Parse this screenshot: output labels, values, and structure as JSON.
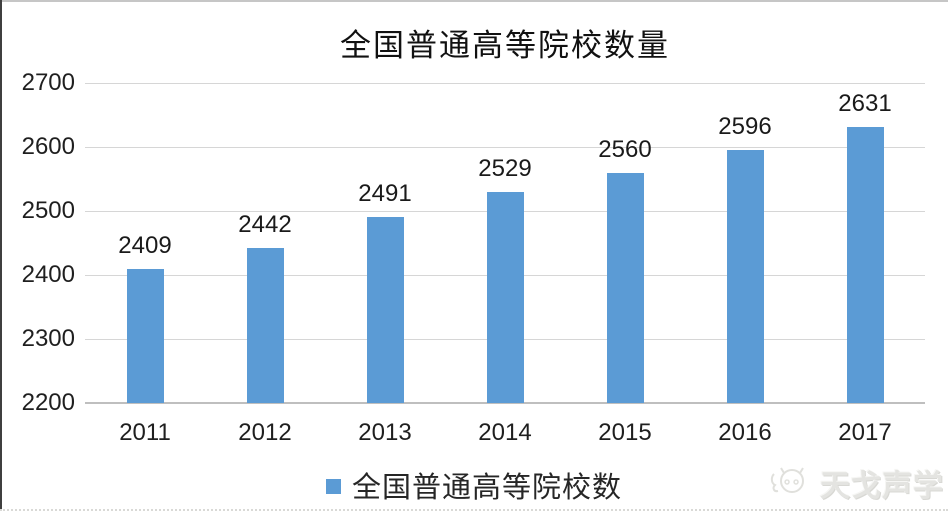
{
  "chart_data": {
    "type": "bar",
    "title": "全国普通高等院校数量",
    "categories": [
      "2011",
      "2012",
      "2013",
      "2014",
      "2015",
      "2016",
      "2017"
    ],
    "series": [
      {
        "name": "全国普通高等院校数",
        "values": [
          2409,
          2442,
          2491,
          2529,
          2560,
          2596,
          2631
        ]
      }
    ],
    "xlabel": "",
    "ylabel": "",
    "ylim": [
      2200,
      2700
    ],
    "yticks": [
      2200,
      2300,
      2400,
      2500,
      2600,
      2700
    ],
    "grid": "horizontal",
    "legend_position": "bottom",
    "data_labels": true,
    "bar_color": "#5B9BD5",
    "gridline_color": "#d6d6d6",
    "axis_line_color": "#bfbfbf"
  },
  "watermark": {
    "text": "天戈声学",
    "logo_icon": "tiange-acoustics-logo-icon"
  }
}
